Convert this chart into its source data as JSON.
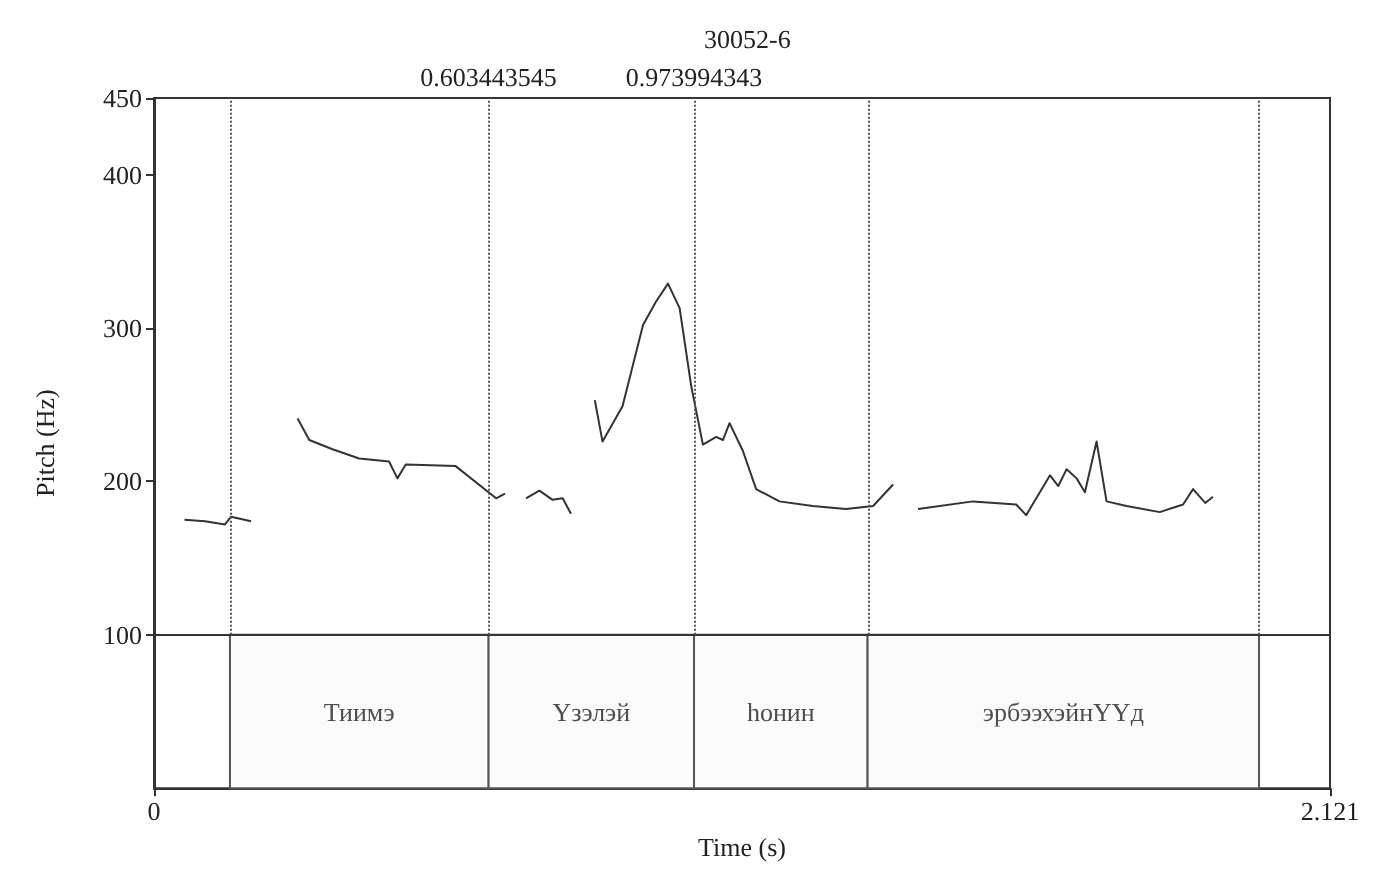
{
  "chart_data": {
    "type": "line",
    "xlabel": "Time (s)",
    "ylabel": "Pitch (Hz)",
    "xlim": [
      0,
      2.121
    ],
    "xticks": [
      0,
      2.121
    ],
    "ylim": [
      0,
      450
    ],
    "yticks": [
      100,
      200,
      300,
      400,
      450
    ],
    "grid": false,
    "marker": "none",
    "line_style": "solid",
    "series": [
      {
        "color": "#333333",
        "x": [
          0.055,
          0.092,
          0.128,
          0.139,
          0.175,
          0.2,
          0.259,
          0.28,
          0.322,
          0.37,
          0.424,
          0.439,
          0.454,
          0.544,
          0.617,
          0.633,
          0.65,
          0.671,
          0.695,
          0.719,
          0.737,
          0.752,
          0.77,
          0.795,
          0.809,
          0.845,
          0.882,
          0.905,
          0.927,
          0.948,
          0.969,
          0.99,
          1.014,
          1.026,
          1.038,
          1.062,
          1.086,
          1.128,
          1.188,
          1.248,
          1.297,
          1.333,
          1.35,
          1.378,
          1.477,
          1.555,
          1.573,
          1.616,
          1.631,
          1.646,
          1.664,
          1.679,
          1.7,
          1.718,
          1.754,
          1.814,
          1.856,
          1.874,
          1.896,
          1.91
        ],
        "values": [
          175,
          174,
          172,
          177,
          174,
          null,
          241,
          227,
          221,
          215,
          213,
          202,
          211,
          210,
          189,
          192,
          null,
          189,
          194,
          188,
          189,
          179,
          null,
          253,
          226,
          249,
          302,
          317,
          329,
          313,
          262,
          224,
          229,
          227,
          238,
          220,
          195,
          187,
          184,
          182,
          184,
          198,
          null,
          182,
          187,
          185,
          178,
          204,
          197,
          208,
          202,
          193,
          226,
          187,
          184,
          180,
          185,
          195,
          186,
          190
        ]
      }
    ],
    "ref_lines": [
      {
        "axis": "y",
        "value": 100,
        "line_style": "solid"
      },
      {
        "axis": "x",
        "value": 0.137,
        "line_style": "dotted"
      },
      {
        "axis": "x",
        "value": 0.603443545,
        "label": "0.603443545",
        "line_style": "dotted"
      },
      {
        "axis": "x",
        "value": 0.973994343,
        "label": "0.973994343",
        "line_style": "dotted"
      },
      {
        "axis": "x",
        "value": 1.287,
        "line_style": "dotted"
      },
      {
        "axis": "x",
        "value": 1.993,
        "line_style": "dotted"
      }
    ],
    "bands": [
      {
        "axis": "x",
        "from": 0.137,
        "to": 0.603443545,
        "label": "Тиимэ",
        "color": "#fbfbfb"
      },
      {
        "axis": "x",
        "from": 0.603443545,
        "to": 0.973994343,
        "label": "Үзэлэй",
        "color": "#fbfbfb"
      },
      {
        "axis": "x",
        "from": 0.973994343,
        "to": 1.287,
        "label": "һонин",
        "color": "#fbfbfb"
      },
      {
        "axis": "x",
        "from": 1.287,
        "to": 1.993,
        "label": "эрбээхэйнҮҮд",
        "color": "#fbfbfb"
      }
    ],
    "annotations": [
      "30052-6"
    ]
  }
}
